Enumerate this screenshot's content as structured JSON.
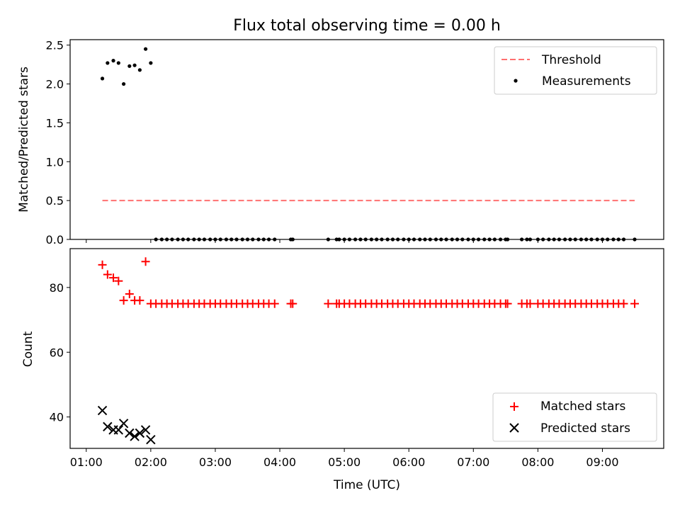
{
  "chart_data": {
    "title": "Flux total observing time = 0.00 h",
    "xlabel": "Time (UTC)",
    "x_unit": "hours UTC",
    "xlim": [
      0.75,
      9.95
    ],
    "x_ticks": [
      {
        "value": 1,
        "label": "01:00"
      },
      {
        "value": 2,
        "label": "02:00"
      },
      {
        "value": 3,
        "label": "03:00"
      },
      {
        "value": 4,
        "label": "04:00"
      },
      {
        "value": 5,
        "label": "05:00"
      },
      {
        "value": 6,
        "label": "06:00"
      },
      {
        "value": 7,
        "label": "07:00"
      },
      {
        "value": 8,
        "label": "08:00"
      },
      {
        "value": 9,
        "label": "09:00"
      }
    ],
    "top": {
      "type": "scatter",
      "ylabel": "Matched/Predicted stars",
      "ylim": [
        0,
        2.57
      ],
      "y_ticks": [
        {
          "value": 0,
          "label": "0.0"
        },
        {
          "value": 0.5,
          "label": "0.5"
        },
        {
          "value": 1,
          "label": "1.0"
        },
        {
          "value": 1.5,
          "label": "1.5"
        },
        {
          "value": 2,
          "label": "2.0"
        },
        {
          "value": 2.5,
          "label": "2.5"
        }
      ],
      "threshold": {
        "name": "Threshold",
        "y": 0.5,
        "x": [
          1.25,
          9.5
        ],
        "color": "#ff7070",
        "style": "dashed"
      },
      "measurements": {
        "name": "Measurements",
        "color": "#000000",
        "x": [
          1.25,
          1.33,
          1.42,
          1.5,
          1.58,
          1.67,
          1.75,
          1.83,
          1.92,
          2.0,
          2.08,
          2.17,
          2.25,
          2.33,
          2.42,
          2.5,
          2.58,
          2.67,
          2.75,
          2.83,
          2.92,
          3.0,
          3.08,
          3.17,
          3.25,
          3.33,
          3.42,
          3.5,
          3.58,
          3.67,
          3.75,
          3.83,
          3.92,
          4.17,
          4.2,
          4.75,
          4.88,
          4.92,
          5.0,
          5.08,
          5.17,
          5.25,
          5.33,
          5.42,
          5.5,
          5.58,
          5.67,
          5.75,
          5.83,
          5.92,
          6.0,
          6.08,
          6.17,
          6.25,
          6.33,
          6.42,
          6.5,
          6.58,
          6.67,
          6.75,
          6.83,
          6.92,
          7.0,
          7.08,
          7.17,
          7.25,
          7.33,
          7.42,
          7.5,
          7.53,
          7.75,
          7.83,
          7.88,
          8.0,
          8.08,
          8.17,
          8.25,
          8.33,
          8.42,
          8.5,
          8.58,
          8.67,
          8.75,
          8.83,
          8.92,
          9.0,
          9.08,
          9.17,
          9.25,
          9.33,
          9.5
        ],
        "y": [
          2.07,
          2.27,
          2.3,
          2.27,
          2.0,
          2.23,
          2.24,
          2.18,
          2.45,
          2.27,
          0,
          0,
          0,
          0,
          0,
          0,
          0,
          0,
          0,
          0,
          0,
          0,
          0,
          0,
          0,
          0,
          0,
          0,
          0,
          0,
          0,
          0,
          0,
          0,
          0,
          0,
          0,
          0,
          0,
          0,
          0,
          0,
          0,
          0,
          0,
          0,
          0,
          0,
          0,
          0,
          0,
          0,
          0,
          0,
          0,
          0,
          0,
          0,
          0,
          0,
          0,
          0,
          0,
          0,
          0,
          0,
          0,
          0,
          0,
          0,
          0,
          0,
          0,
          0,
          0,
          0,
          0,
          0,
          0,
          0,
          0,
          0,
          0,
          0,
          0,
          0,
          0,
          0,
          0,
          0,
          0
        ]
      },
      "legend": {
        "placement": "upper right",
        "entries": [
          "Threshold",
          "Measurements"
        ]
      }
    },
    "bottom": {
      "type": "scatter",
      "ylabel": "Count",
      "ylim": [
        30.3,
        92
      ],
      "y_ticks": [
        {
          "value": 40,
          "label": "40"
        },
        {
          "value": 60,
          "label": "60"
        },
        {
          "value": 80,
          "label": "80"
        }
      ],
      "matched": {
        "name": "Matched stars",
        "color": "#ff0000",
        "marker": "plus",
        "x": [
          1.25,
          1.33,
          1.42,
          1.5,
          1.58,
          1.67,
          1.75,
          1.83,
          1.92,
          2.0,
          2.08,
          2.17,
          2.25,
          2.33,
          2.42,
          2.5,
          2.58,
          2.67,
          2.75,
          2.83,
          2.92,
          3.0,
          3.08,
          3.17,
          3.25,
          3.33,
          3.42,
          3.5,
          3.58,
          3.67,
          3.75,
          3.83,
          3.92,
          4.17,
          4.2,
          4.75,
          4.88,
          4.92,
          5.0,
          5.08,
          5.17,
          5.25,
          5.33,
          5.42,
          5.5,
          5.58,
          5.67,
          5.75,
          5.83,
          5.92,
          6.0,
          6.08,
          6.17,
          6.25,
          6.33,
          6.42,
          6.5,
          6.58,
          6.67,
          6.75,
          6.83,
          6.92,
          7.0,
          7.08,
          7.17,
          7.25,
          7.33,
          7.42,
          7.5,
          7.53,
          7.75,
          7.83,
          7.88,
          8.0,
          8.08,
          8.17,
          8.25,
          8.33,
          8.42,
          8.5,
          8.58,
          8.67,
          8.75,
          8.83,
          8.92,
          9.0,
          9.08,
          9.17,
          9.25,
          9.33,
          9.5
        ],
        "y": [
          87,
          84,
          83,
          82,
          76,
          78,
          76,
          76,
          88,
          75,
          75,
          75,
          75,
          75,
          75,
          75,
          75,
          75,
          75,
          75,
          75,
          75,
          75,
          75,
          75,
          75,
          75,
          75,
          75,
          75,
          75,
          75,
          75,
          75,
          75,
          75,
          75,
          75,
          75,
          75,
          75,
          75,
          75,
          75,
          75,
          75,
          75,
          75,
          75,
          75,
          75,
          75,
          75,
          75,
          75,
          75,
          75,
          75,
          75,
          75,
          75,
          75,
          75,
          75,
          75,
          75,
          75,
          75,
          75,
          75,
          75,
          75,
          75,
          75,
          75,
          75,
          75,
          75,
          75,
          75,
          75,
          75,
          75,
          75,
          75,
          75,
          75,
          75,
          75,
          75,
          75
        ]
      },
      "predicted": {
        "name": "Predicted stars",
        "color": "#000000",
        "marker": "x",
        "x": [
          1.25,
          1.33,
          1.42,
          1.5,
          1.58,
          1.67,
          1.75,
          1.83,
          1.92,
          2.0
        ],
        "y": [
          42,
          37,
          36,
          36,
          38,
          35,
          34,
          35,
          36,
          33
        ]
      },
      "legend": {
        "placement": "lower right",
        "entries": [
          "Matched stars",
          "Predicted stars"
        ]
      }
    }
  }
}
